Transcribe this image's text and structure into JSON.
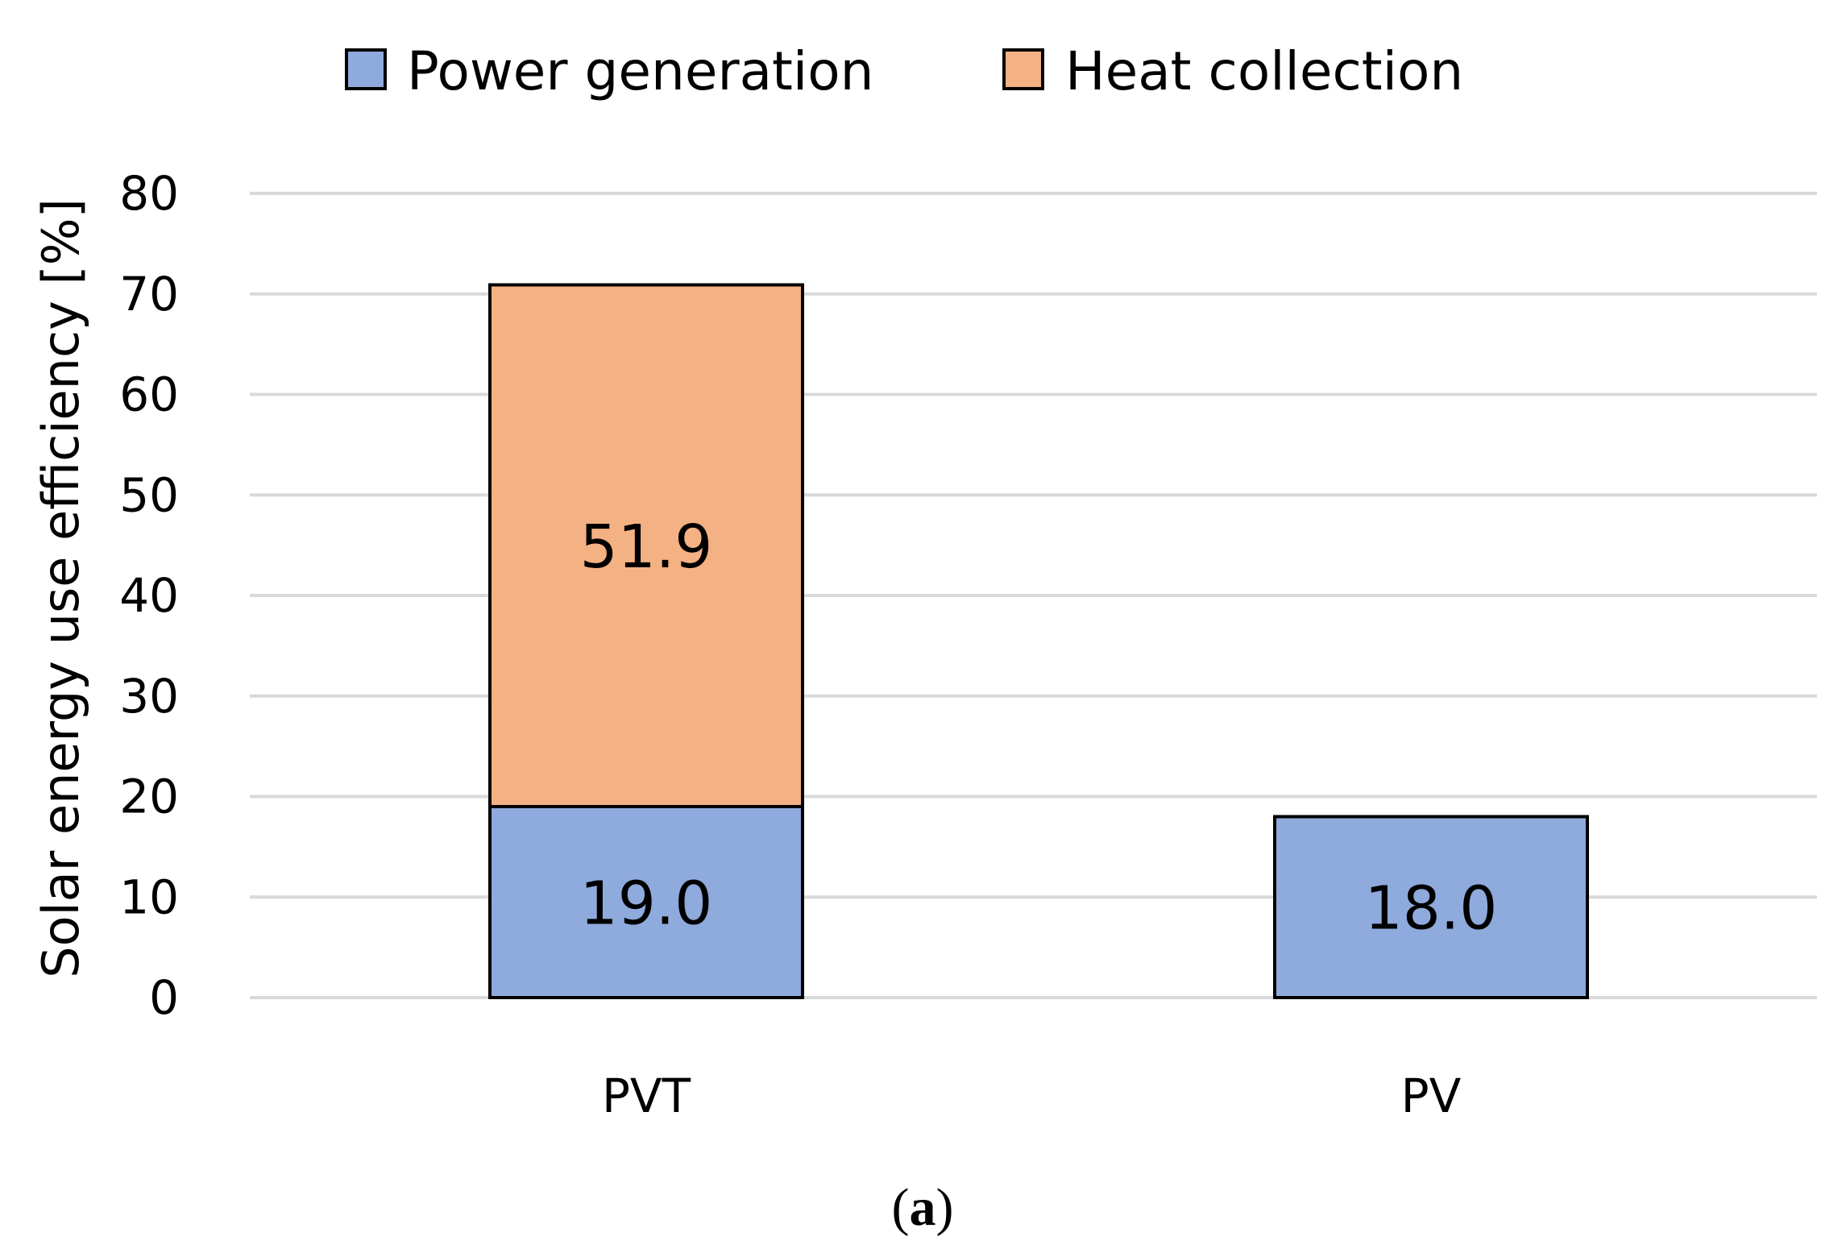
{
  "chart_data": {
    "type": "bar",
    "stacked": true,
    "categories": [
      "PVT",
      "PV"
    ],
    "series": [
      {
        "name": "Power generation",
        "values": [
          19.0,
          18.0
        ],
        "color": "#8FAADC"
      },
      {
        "name": "Heat collection",
        "values": [
          51.9,
          0
        ],
        "color": "#F4B183"
      }
    ],
    "data_labels": [
      [
        "19.0",
        "18.0"
      ],
      [
        "51.9",
        ""
      ]
    ],
    "xlabel": "",
    "ylabel": "Solar energy use efficiency [%]",
    "ylim": [
      0,
      80
    ],
    "yticks": [
      0,
      10,
      20,
      30,
      40,
      50,
      60,
      70,
      80
    ],
    "grid": true,
    "legend_position": "top-center",
    "caption_letter": "a",
    "gridline_color": "#D9D9D9",
    "border_color": "#000000"
  }
}
